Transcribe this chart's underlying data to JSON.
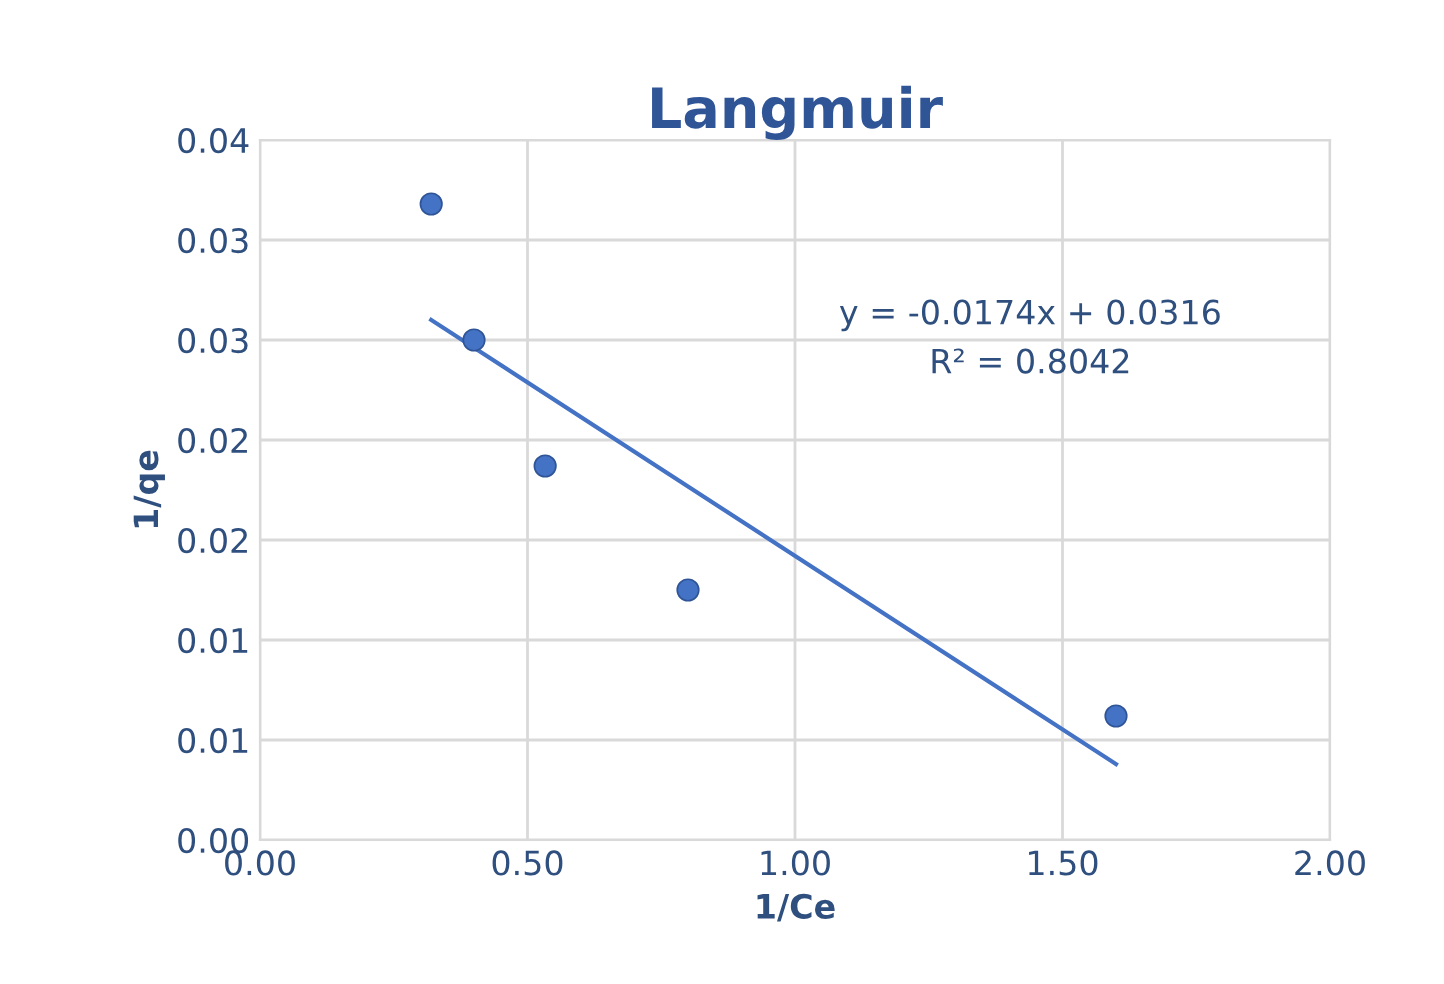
{
  "chart_data": {
    "type": "scatter",
    "title": "Langmuir",
    "xlabel": "1/Ce",
    "ylabel": "1/qe",
    "series": [
      {
        "color": "#4472c4",
        "x": [
          0.32,
          0.4,
          0.533,
          0.8,
          1.6
        ],
        "values": [
          0.0318,
          0.025,
          0.0187,
          0.0125,
          0.0062
        ],
        "marker": "circle"
      },
      {
        "type": "line",
        "color": "#4472c4",
        "x": [
          0.32,
          1.6
        ],
        "values": [
          0.026,
          0.0038
        ],
        "marker": "none",
        "line_style": "solid"
      }
    ],
    "annotations": [
      "y = -0.0174x + 0.0316",
      "R² = 0.8042"
    ],
    "xlim": [
      0,
      2
    ],
    "xticks": [
      {
        "value": 0,
        "label": "0.00"
      },
      {
        "value": 0.5,
        "label": "0.50"
      },
      {
        "value": 1,
        "label": "1.00"
      },
      {
        "value": 1.5,
        "label": "1.50"
      },
      {
        "value": 2,
        "label": "2.00"
      }
    ],
    "ylim": [
      0,
      0.035
    ],
    "yticks": [
      {
        "value": 0,
        "label": "0.00"
      },
      {
        "value": 0.005,
        "label": "0.01"
      },
      {
        "value": 0.01,
        "label": "0.01"
      },
      {
        "value": 0.015,
        "label": "0.02"
      },
      {
        "value": 0.02,
        "label": "0.02"
      },
      {
        "value": 0.025,
        "label": "0.03"
      },
      {
        "value": 0.03,
        "label": "0.03"
      },
      {
        "value": 0.035,
        "label": "0.04"
      }
    ],
    "grid": true
  }
}
